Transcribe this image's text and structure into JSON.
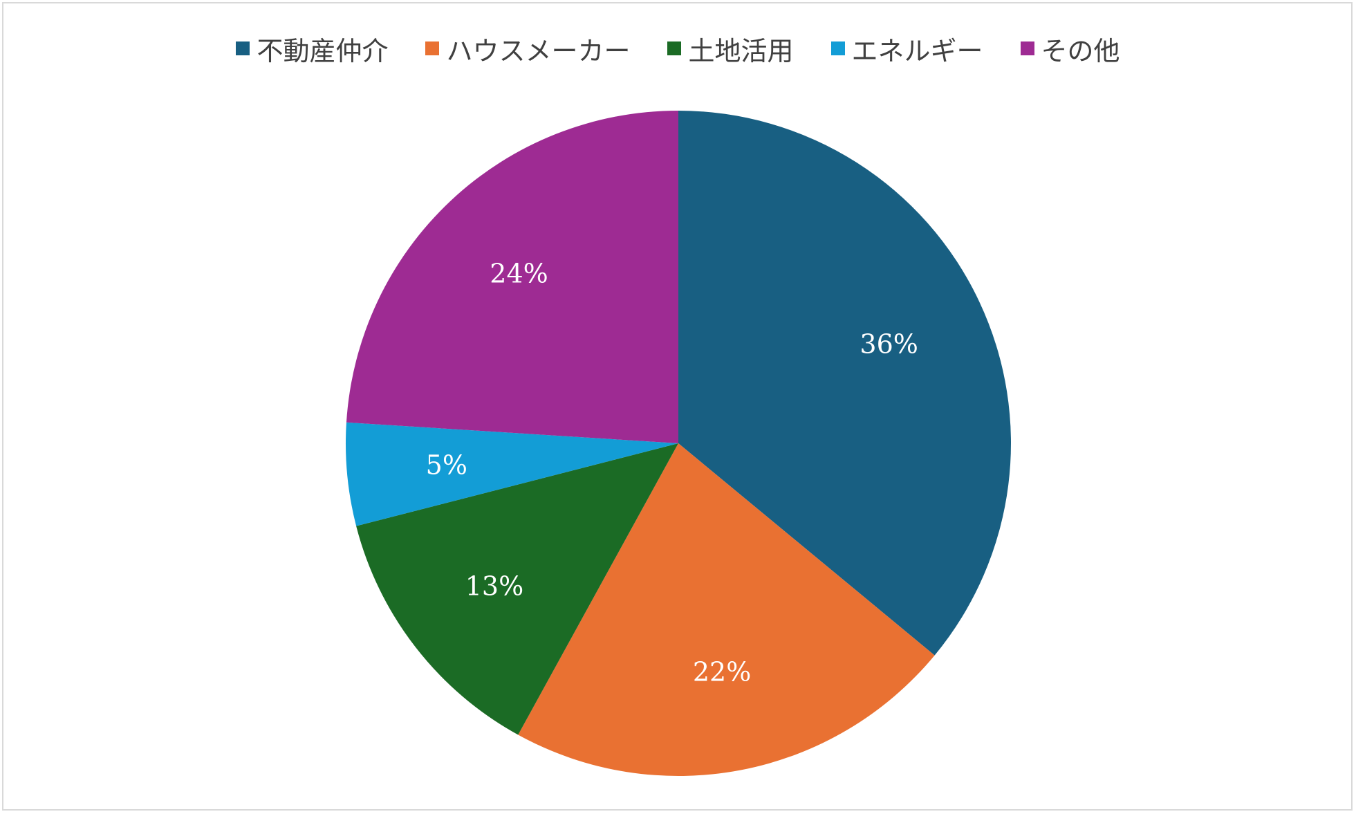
{
  "chart_data": {
    "type": "pie",
    "categories": [
      "不動産仲介",
      "ハウスメーカー",
      "土地活用",
      "エネルギー",
      "その他"
    ],
    "values": [
      36,
      22,
      13,
      5,
      24
    ],
    "labels": [
      "36%",
      "22%",
      "13%",
      "5%",
      "24%"
    ],
    "colors": [
      "#185f82",
      "#e97132",
      "#1b6b25",
      "#139dd6",
      "#9e2b93"
    ],
    "legend_position": "top",
    "start": "12 o'clock, clockwise"
  }
}
